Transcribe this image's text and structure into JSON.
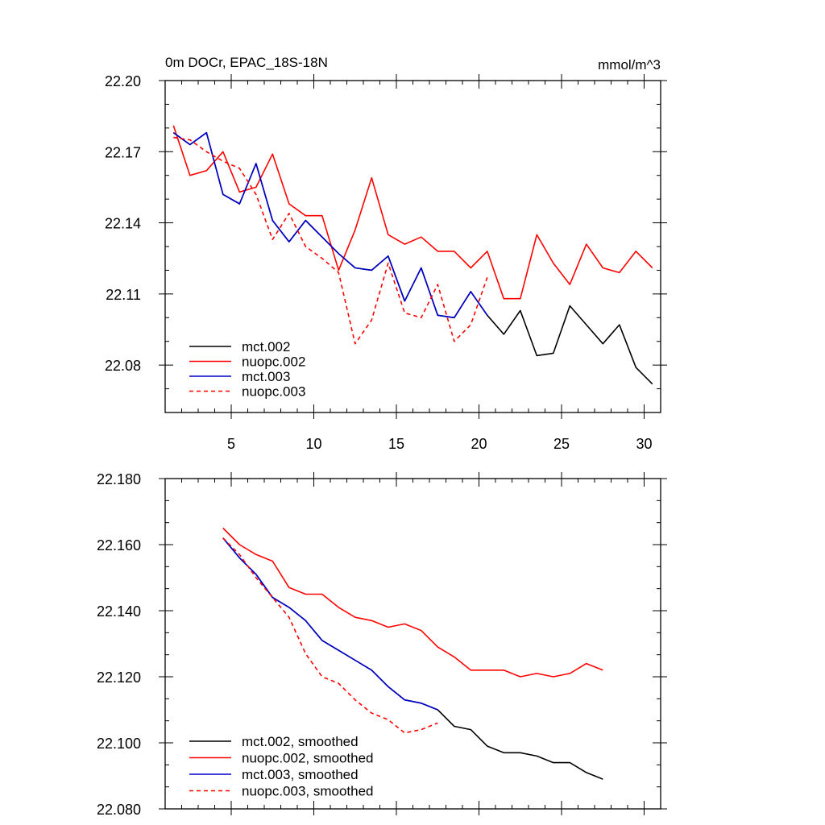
{
  "chart_data": [
    {
      "type": "line",
      "title": "0m DOCr, EPAC_18S-18N",
      "units": "mmol/m^3",
      "xlim": [
        1,
        31
      ],
      "ylim": [
        22.06,
        22.2
      ],
      "x_ticks": [
        5,
        10,
        15,
        20,
        25,
        30
      ],
      "x_tick_labels": [
        "5",
        "10",
        "15",
        "20",
        "25",
        "30"
      ],
      "y_ticks": [
        22.08,
        22.11,
        22.14,
        22.17,
        22.2
      ],
      "y_tick_labels": [
        "22.08",
        "22.11",
        "22.14",
        "22.17",
        "22.20"
      ],
      "legend_position": "bottom-left",
      "series": [
        {
          "name": "mct.002",
          "color": "#000000",
          "dash": false,
          "x": [
            1.5,
            2.5,
            3.5,
            4.5,
            5.5,
            6.5,
            7.5,
            8.5,
            9.5,
            10.5,
            11.5,
            12.5,
            13.5,
            14.5,
            15.5,
            16.5,
            17.5,
            18.5,
            19.5,
            20.5,
            21.5,
            22.5,
            23.5,
            24.5,
            25.5,
            26.5,
            27.5,
            28.5,
            29.5,
            30.5
          ],
          "y": [
            22.178,
            22.173,
            22.178,
            22.152,
            22.148,
            22.165,
            22.141,
            22.132,
            22.141,
            22.134,
            22.127,
            22.121,
            22.12,
            22.126,
            22.107,
            22.121,
            22.101,
            22.1,
            22.111,
            22.101,
            22.093,
            22.103,
            22.084,
            22.085,
            22.105,
            22.097,
            22.089,
            22.097,
            22.079,
            22.072
          ]
        },
        {
          "name": "nuopc.002",
          "color": "#ff0000",
          "dash": false,
          "x": [
            1.5,
            2.5,
            3.5,
            4.5,
            5.5,
            6.5,
            7.5,
            8.5,
            9.5,
            10.5,
            11.5,
            12.5,
            13.5,
            14.5,
            15.5,
            16.5,
            17.5,
            18.5,
            19.5,
            20.5,
            21.5,
            22.5,
            23.5,
            24.5,
            25.5,
            26.5,
            27.5,
            28.5,
            29.5,
            30.5
          ],
          "y": [
            22.181,
            22.16,
            22.162,
            22.17,
            22.153,
            22.155,
            22.169,
            22.148,
            22.143,
            22.143,
            22.12,
            22.137,
            22.159,
            22.135,
            22.131,
            22.134,
            22.128,
            22.128,
            22.121,
            22.128,
            22.108,
            22.108,
            22.135,
            22.123,
            22.114,
            22.131,
            22.121,
            22.119,
            22.128,
            22.121
          ]
        },
        {
          "name": "mct.003",
          "color": "#0000cc",
          "dash": false,
          "x": [
            1.5,
            2.5,
            3.5,
            4.5,
            5.5,
            6.5,
            7.5,
            8.5,
            9.5,
            10.5,
            11.5,
            12.5,
            13.5,
            14.5,
            15.5,
            16.5,
            17.5,
            18.5,
            19.5,
            20.5
          ],
          "y": [
            22.178,
            22.173,
            22.178,
            22.152,
            22.148,
            22.165,
            22.141,
            22.132,
            22.141,
            22.134,
            22.127,
            22.121,
            22.12,
            22.126,
            22.107,
            22.121,
            22.101,
            22.1,
            22.111,
            22.101
          ]
        },
        {
          "name": "nuopc.003",
          "color": "#ff0000",
          "dash": true,
          "x": [
            1.5,
            2.5,
            3.5,
            4.5,
            5.5,
            6.5,
            7.5,
            8.5,
            9.5,
            10.5,
            11.5,
            12.5,
            13.5,
            14.5,
            15.5,
            16.5,
            17.5,
            18.5,
            19.5,
            20.5
          ],
          "y": [
            22.176,
            22.175,
            22.17,
            22.166,
            22.163,
            22.152,
            22.133,
            22.144,
            22.13,
            22.125,
            22.119,
            22.089,
            22.099,
            22.123,
            22.102,
            22.1,
            22.114,
            22.09,
            22.097,
            22.117
          ]
        }
      ]
    },
    {
      "type": "line",
      "xlim": [
        1,
        31
      ],
      "ylim": [
        22.08,
        22.18
      ],
      "x_ticks": [
        5,
        10,
        15,
        20,
        25,
        30
      ],
      "y_ticks": [
        22.08,
        22.1,
        22.12,
        22.14,
        22.16,
        22.18
      ],
      "y_tick_labels": [
        "22.080",
        "22.100",
        "22.120",
        "22.140",
        "22.160",
        "22.180"
      ],
      "legend_position": "bottom-left",
      "series": [
        {
          "name": "mct.002, smoothed",
          "color": "#000000",
          "dash": false,
          "x": [
            4.5,
            5.5,
            6.5,
            7.5,
            8.5,
            9.5,
            10.5,
            11.5,
            12.5,
            13.5,
            14.5,
            15.5,
            16.5,
            17.5,
            18.5,
            19.5,
            20.5,
            21.5,
            22.5,
            23.5,
            24.5,
            25.5,
            26.5,
            27.5
          ],
          "y": [
            22.162,
            22.156,
            22.151,
            22.144,
            22.141,
            22.137,
            22.131,
            22.128,
            22.125,
            22.122,
            22.117,
            22.113,
            22.112,
            22.11,
            22.105,
            22.104,
            22.099,
            22.097,
            22.097,
            22.096,
            22.094,
            22.094,
            22.091,
            22.089
          ]
        },
        {
          "name": "nuopc.002, smoothed",
          "color": "#ff0000",
          "dash": false,
          "x": [
            4.5,
            5.5,
            6.5,
            7.5,
            8.5,
            9.5,
            10.5,
            11.5,
            12.5,
            13.5,
            14.5,
            15.5,
            16.5,
            17.5,
            18.5,
            19.5,
            20.5,
            21.5,
            22.5,
            23.5,
            24.5,
            25.5,
            26.5,
            27.5
          ],
          "y": [
            22.165,
            22.16,
            22.157,
            22.155,
            22.147,
            22.145,
            22.145,
            22.141,
            22.138,
            22.137,
            22.135,
            22.136,
            22.134,
            22.129,
            22.126,
            22.122,
            22.122,
            22.122,
            22.12,
            22.121,
            22.12,
            22.121,
            22.124,
            22.122
          ]
        },
        {
          "name": "mct.003, smoothed",
          "color": "#0000cc",
          "dash": false,
          "x": [
            4.5,
            5.5,
            6.5,
            7.5,
            8.5,
            9.5,
            10.5,
            11.5,
            12.5,
            13.5,
            14.5,
            15.5,
            16.5,
            17.5
          ],
          "y": [
            22.162,
            22.156,
            22.151,
            22.144,
            22.141,
            22.137,
            22.131,
            22.128,
            22.125,
            22.122,
            22.117,
            22.113,
            22.112,
            22.11
          ]
        },
        {
          "name": "nuopc.003, smoothed",
          "color": "#ff0000",
          "dash": true,
          "x": [
            4.5,
            5.5,
            6.5,
            7.5,
            8.5,
            9.5,
            10.5,
            11.5,
            12.5,
            13.5,
            14.5,
            15.5,
            16.5,
            17.5
          ],
          "y": [
            22.162,
            22.157,
            22.15,
            22.144,
            22.138,
            22.127,
            22.12,
            22.118,
            22.113,
            22.109,
            22.107,
            22.103,
            22.104,
            22.106
          ]
        }
      ]
    }
  ]
}
